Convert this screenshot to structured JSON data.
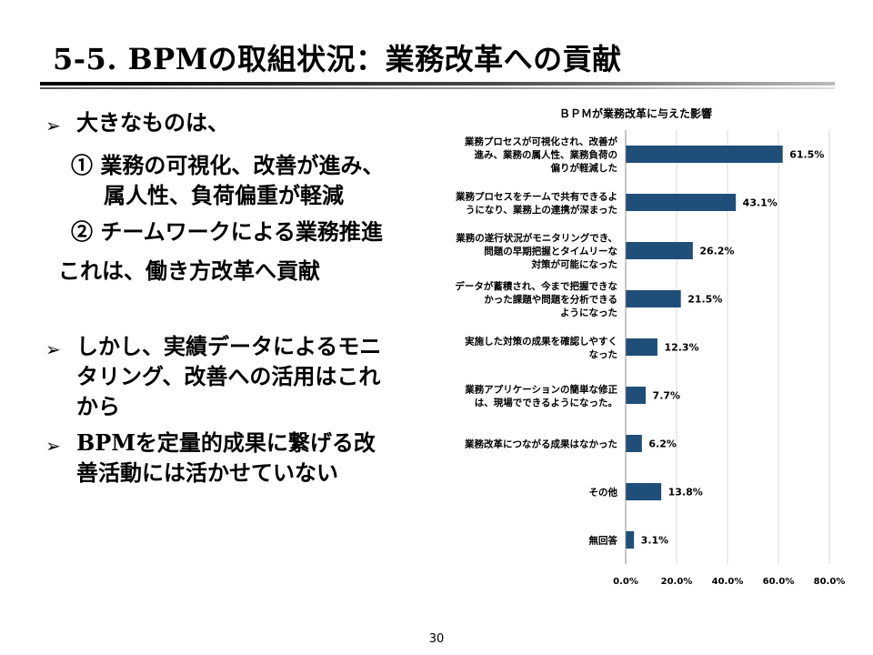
{
  "slide": {
    "title": "5-5. BPMの取組状況：業務改革への貢献",
    "bullet_glyph": "➢",
    "bullet1": "大きなものは、",
    "item1_line1": "① 業務の可視化、改善が進み、",
    "item1_line2": "属人性、負荷偏重が軽減",
    "item2": "② チームワークによる業務推進",
    "summary": "これは、働き方改革へ貢献",
    "bullet2_line1": "しかし、実績データによるモニ",
    "bullet2_line2": "タリング、改善への活用はこれ",
    "bullet2_line3": "から",
    "bullet3_line1": "BPMを定量的成果に繋げる改",
    "bullet3_line2": "善活動には活かせていない",
    "page_number": "30"
  },
  "chart_data": {
    "type": "bar",
    "orientation": "horizontal",
    "title": "ＢＰＭが業務改革に与えた影響",
    "bar_color": "#1f4e79",
    "categories": [
      [
        "業務プロセスが可視化され、改善が",
        "進み、業務の属人性、業務負荷の",
        "偏りが軽減した"
      ],
      [
        "業務プロセスをチームで共有できるよ",
        "うになり、業務上の連携が深まった"
      ],
      [
        "業務の遂行状況がモニタリングでき、",
        "問題の早期把握とタイムリーな",
        "対策が可能になった"
      ],
      [
        "データが蓄積され、今まで把握できな",
        "かった課題や問題を分析できる",
        "ようになった"
      ],
      [
        "実施した対策の成果を確認しやすく",
        "なった"
      ],
      [
        "業務アプリケーションの簡単な修正",
        "は、現場でできるようになった。"
      ],
      [
        "業務改革につながる成果はなかった"
      ],
      [
        "その他"
      ],
      [
        "無回答"
      ]
    ],
    "values": [
      61.5,
      43.1,
      26.2,
      21.5,
      12.3,
      7.7,
      6.2,
      13.8,
      3.1
    ],
    "value_labels": [
      "61.5%",
      "43.1%",
      "26.2%",
      "21.5%",
      "12.3%",
      "7.7%",
      "6.2%",
      "13.8%",
      "3.1%"
    ],
    "xlim": [
      0,
      80
    ],
    "xticks": [
      "0.0%",
      "20.0%",
      "40.0%",
      "60.0%",
      "80.0%"
    ],
    "grid": true
  }
}
